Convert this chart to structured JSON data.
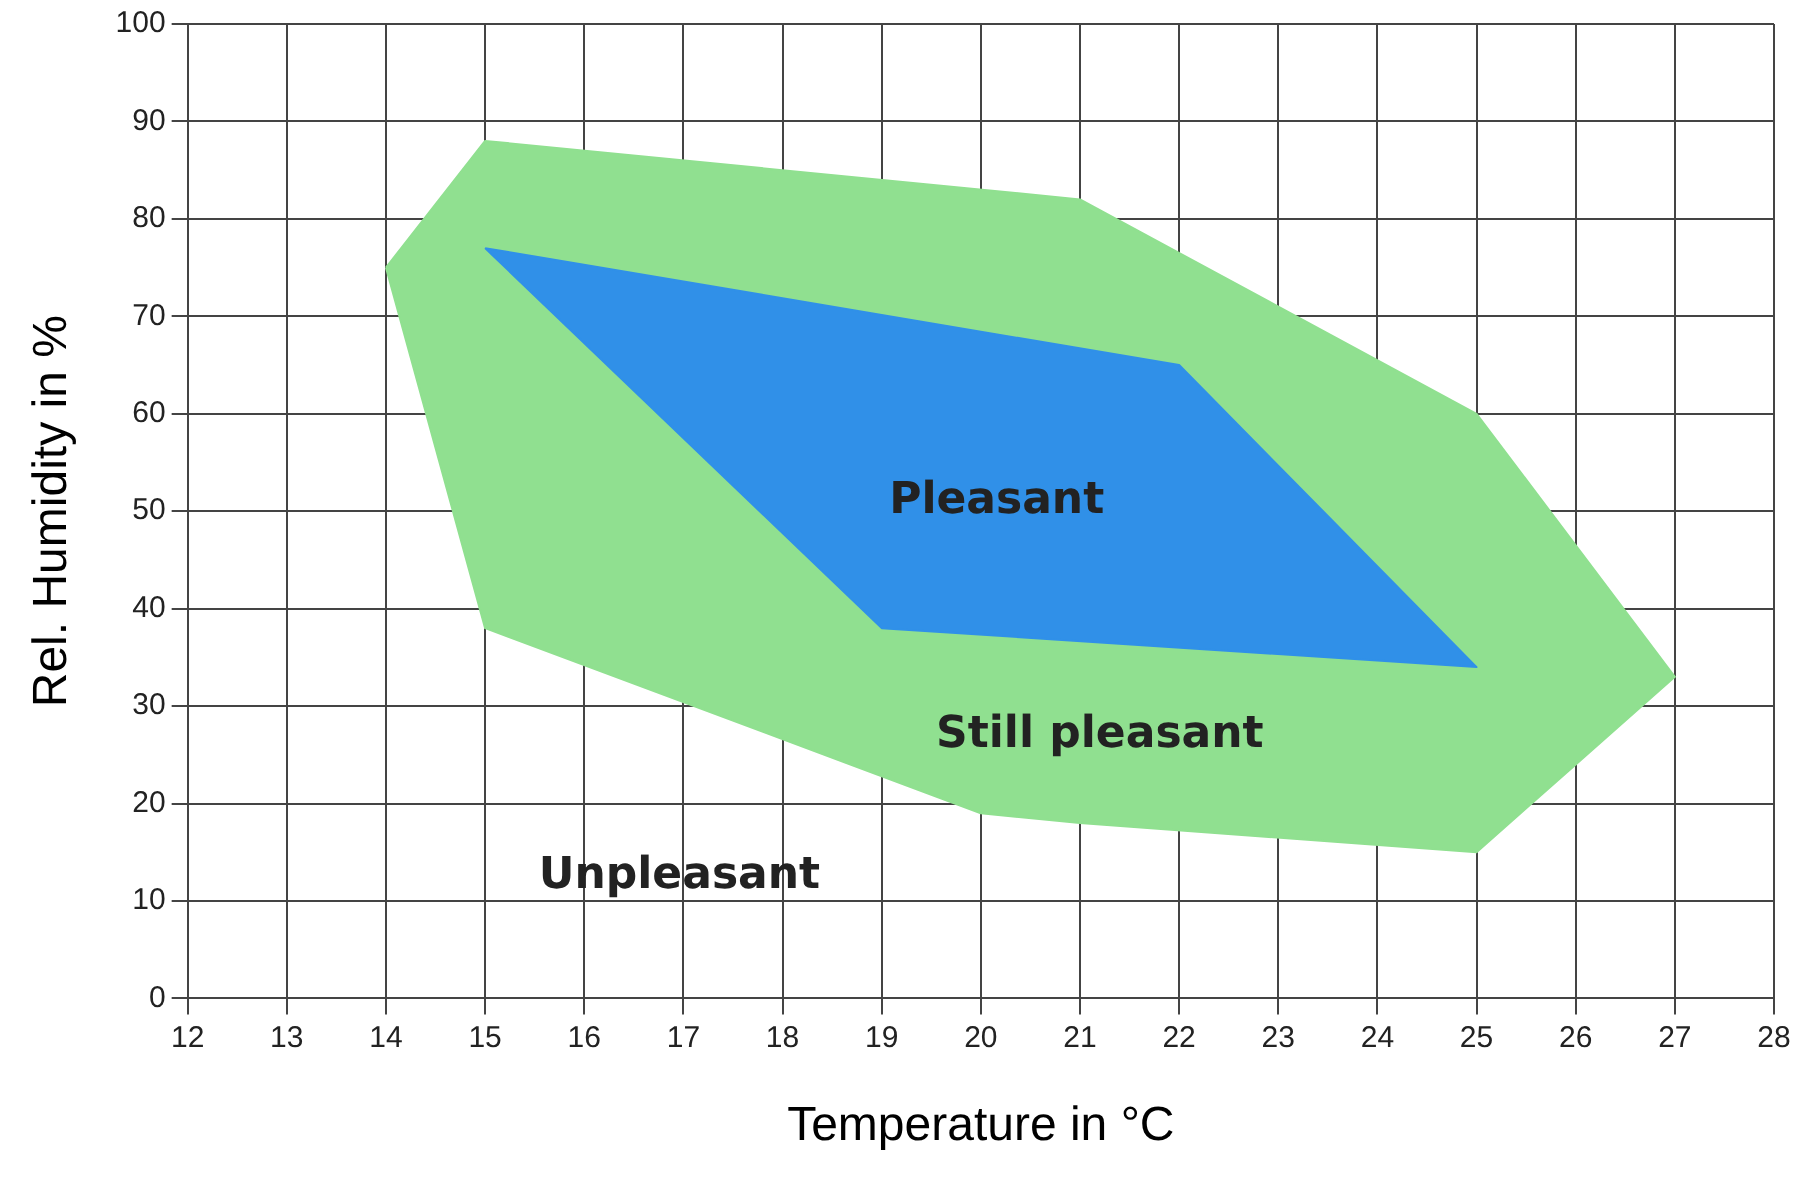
{
  "chart_data": {
    "type": "area",
    "xlabel": "Temperature in °C",
    "ylabel": "Rel. Humidity in %",
    "xlim": [
      12,
      28
    ],
    "xticks": [
      12,
      13,
      14,
      15,
      16,
      17,
      18,
      19,
      20,
      21,
      22,
      23,
      24,
      25,
      26,
      27,
      28
    ],
    "ylim": [
      0,
      100
    ],
    "yticks": [
      0,
      10,
      20,
      30,
      40,
      50,
      60,
      70,
      80,
      90,
      100
    ],
    "grid": true,
    "legend": false,
    "series": [
      {
        "color": "#90e090",
        "x": [
          14,
          15,
          21,
          25,
          27,
          25,
          21,
          20,
          15,
          14
        ],
        "values": [
          75,
          88,
          82,
          60,
          33,
          15,
          18,
          19,
          38,
          75
        ]
      },
      {
        "color": "#3090e8",
        "x": [
          15,
          22,
          25,
          19,
          15
        ],
        "values": [
          77,
          65,
          34,
          38,
          77
        ]
      }
    ],
    "annotations": [
      "Pleasant",
      "Still pleasant",
      "Unpleasant"
    ]
  }
}
